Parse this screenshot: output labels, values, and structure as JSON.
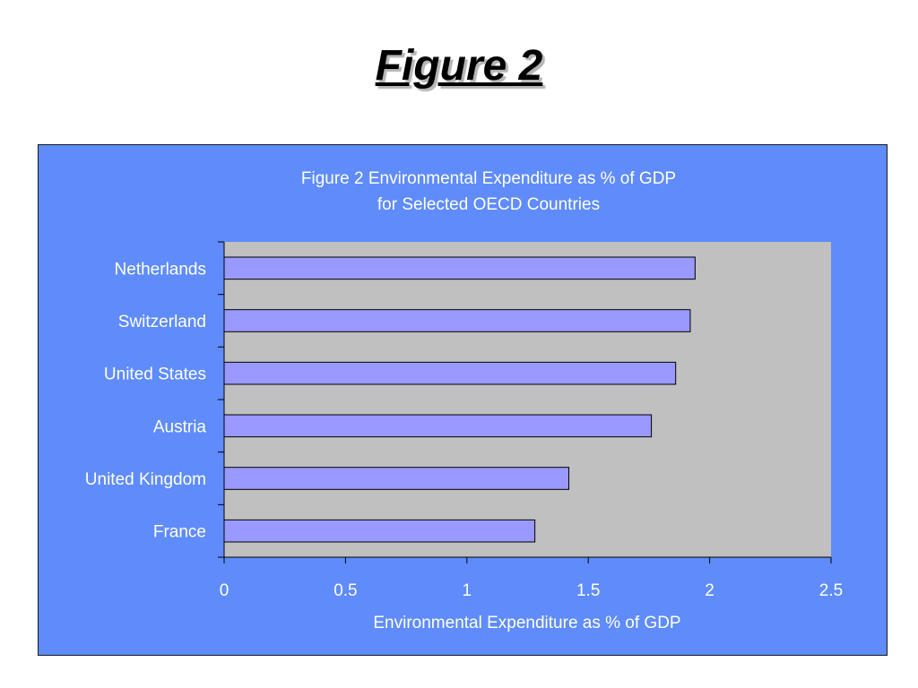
{
  "slide": {
    "title": "Figure 2"
  },
  "chart_data": {
    "type": "bar",
    "orientation": "horizontal",
    "title_lines": [
      "Figure 2   Environmental Expenditure as % of GDP",
      "for Selected OECD Countries"
    ],
    "categories": [
      "Netherlands",
      "Switzerland",
      "United States",
      "Austria",
      "United Kingdom",
      "France"
    ],
    "values": [
      1.94,
      1.92,
      1.86,
      1.76,
      1.42,
      1.28
    ],
    "xlabel": "Environmental Expenditure as % of GDP",
    "ylabel": "",
    "xlim": [
      0,
      2.5
    ],
    "xticks": [
      "0",
      "0.5",
      "1",
      "1.5",
      "2",
      "2.5"
    ],
    "grid": false,
    "legend": "none",
    "colors": {
      "panel": "#5f8cfa",
      "plot_area": "#c0c0c0",
      "bar_fill": "#9999ff",
      "bar_stroke": "#000000",
      "text": "#ffffff"
    }
  }
}
